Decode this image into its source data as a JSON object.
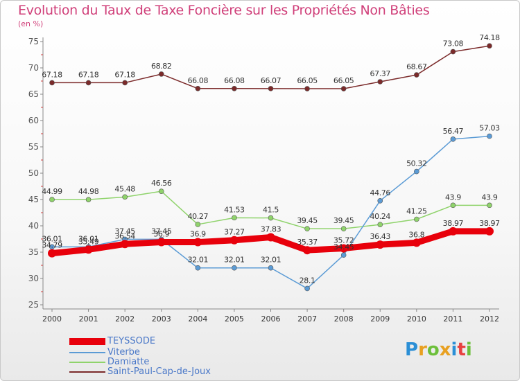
{
  "chart_data": {
    "type": "line",
    "title": "Evolution du Taux de Taxe Foncière sur les Propriétés Non Bâties",
    "ylabel": "(en %)",
    "xlabel": "",
    "ylim": [
      25,
      75
    ],
    "yticks": [
      25,
      30,
      35,
      40,
      45,
      50,
      55,
      60,
      65,
      70,
      75
    ],
    "grid": false,
    "legend": "bottom-left",
    "x": [
      "2000",
      "2001",
      "2002",
      "2003",
      "2004",
      "2005",
      "2006",
      "2007",
      "2008",
      "2009",
      "2010",
      "2011",
      "2012"
    ],
    "series": [
      {
        "name": "TEYSSODE",
        "color": "#e8000b",
        "values": [
          34.79,
          35.49,
          36.54,
          36.9,
          36.9,
          37.27,
          37.83,
          35.37,
          35.72,
          36.43,
          36.8,
          38.97,
          38.97
        ],
        "labels": [
          "34.79",
          "35.49",
          "36.54",
          "36.9",
          "36.9",
          "37.27",
          "37.83",
          "35.37",
          "35.72",
          "36.43",
          "36.8",
          "38.97",
          "38.97"
        ]
      },
      {
        "name": "Viterbe",
        "color": "#5b9bd5",
        "values": [
          36.01,
          36.01,
          37.45,
          37.45,
          32.01,
          32.01,
          32.01,
          28.1,
          34.45,
          44.76,
          50.32,
          56.47,
          57.03
        ],
        "labels": [
          "36.01",
          "36.01",
          "37.45",
          "37.45",
          "32.01",
          "32.01",
          "32.01",
          "28.1",
          "34.45",
          "44.76",
          "50.32",
          "56.47",
          "57.03"
        ]
      },
      {
        "name": "Damiatte",
        "color": "#8fd36b",
        "values": [
          44.99,
          44.98,
          45.48,
          46.56,
          40.27,
          41.53,
          41.5,
          39.45,
          39.45,
          40.24,
          41.25,
          43.9,
          43.9
        ],
        "labels": [
          "44.99",
          "44.98",
          "45.48",
          "46.56",
          "40.27",
          "41.53",
          "41.5",
          "39.45",
          "39.45",
          "40.24",
          "41.25",
          "43.9",
          "43.9"
        ]
      },
      {
        "name": "Saint-Paul-Cap-de-Joux",
        "color": "#7b2a2a",
        "values": [
          67.18,
          67.18,
          67.18,
          68.82,
          66.08,
          66.08,
          66.07,
          66.05,
          66.05,
          67.37,
          68.67,
          73.08,
          74.18
        ],
        "labels": [
          "67.18",
          "67.18",
          "67.18",
          "68.82",
          "66.08",
          "66.08",
          "66.07",
          "66.05",
          "66.05",
          "67.37",
          "68.67",
          "73.08",
          "74.18"
        ]
      }
    ]
  },
  "logo": {
    "letters": [
      "P",
      "r",
      "o",
      "x",
      "i",
      "t",
      "i"
    ],
    "colors": [
      "#2b8fd6",
      "#e8a020",
      "#6cbf3a",
      "#e8a020",
      "#2b8fd6",
      "#e84040",
      "#6cbf3a"
    ]
  }
}
